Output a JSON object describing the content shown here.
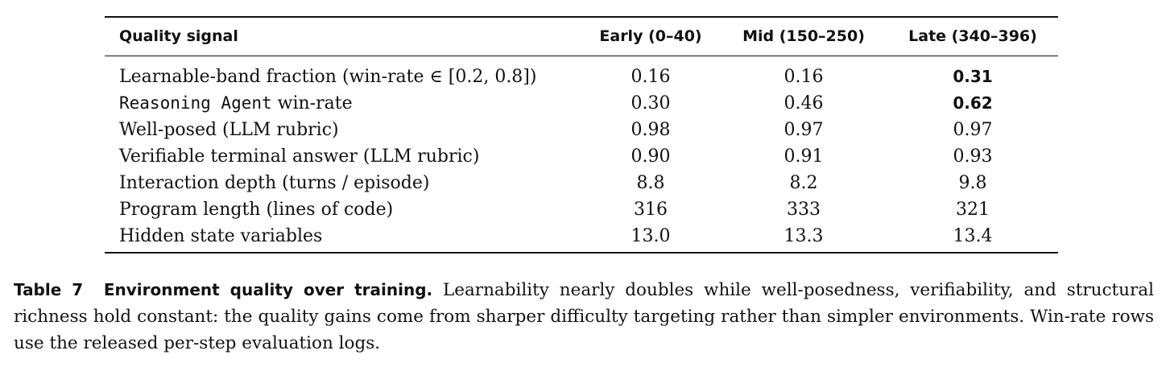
{
  "table": {
    "headers": [
      "Quality signal",
      "Early (0–40)",
      "Mid (150–250)",
      "Late (340–396)"
    ],
    "rows": [
      {
        "label": "Learnable-band fraction (win-rate ∈ [0.2, 0.8])",
        "label_mono": "",
        "label_rest": "",
        "early": "0.16",
        "mid": "0.16",
        "late": "0.31",
        "late_bold": true
      },
      {
        "label": "",
        "label_mono": "Reasoning Agent",
        "label_rest": " win-rate",
        "early": "0.30",
        "mid": "0.46",
        "late": "0.62",
        "late_bold": true
      },
      {
        "label": "Well-posed (LLM rubric)",
        "label_mono": "",
        "label_rest": "",
        "early": "0.98",
        "mid": "0.97",
        "late": "0.97",
        "late_bold": false
      },
      {
        "label": "Verifiable terminal answer (LLM rubric)",
        "label_mono": "",
        "label_rest": "",
        "early": "0.90",
        "mid": "0.91",
        "late": "0.93",
        "late_bold": false
      },
      {
        "label": "Interaction depth (turns / episode)",
        "label_mono": "",
        "label_rest": "",
        "early": "8.8",
        "mid": "8.2",
        "late": "9.8",
        "late_bold": false
      },
      {
        "label": "Program length (lines of code)",
        "label_mono": "",
        "label_rest": "",
        "early": "316",
        "mid": "333",
        "late": "321",
        "late_bold": false
      },
      {
        "label": "Hidden state variables",
        "label_mono": "",
        "label_rest": "",
        "early": "13.0",
        "mid": "13.3",
        "late": "13.4",
        "late_bold": false
      }
    ]
  },
  "caption": {
    "label": "Table 7",
    "title": "Environment quality over training.",
    "text": "Learnability nearly doubles while well-posedness, verifiability, and structural richness hold constant: the quality gains come from sharper difficulty targeting rather than simpler environments. Win-rate rows use the released per-step evaluation logs."
  }
}
